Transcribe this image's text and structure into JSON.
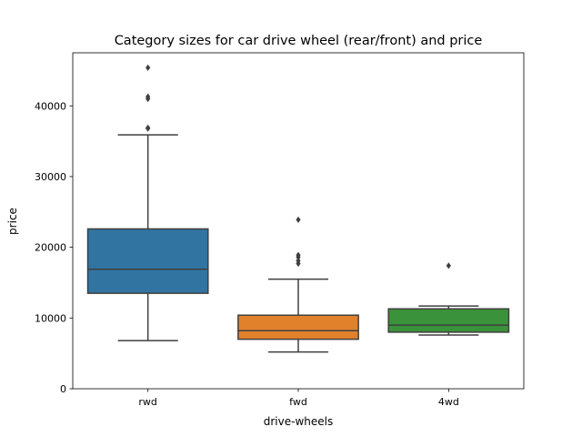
{
  "chart_data": {
    "type": "box",
    "title": "Category sizes for car drive wheel (rear/front) and price",
    "xlabel": "drive-wheels",
    "ylabel": "price",
    "ylim": [
      0,
      47500
    ],
    "yticks": [
      0,
      10000,
      20000,
      30000,
      40000
    ],
    "grid": false,
    "categories": [
      "rwd",
      "fwd",
      "4wd"
    ],
    "boxes": [
      {
        "category": "rwd",
        "color": "#3274a1",
        "whisker_low": 6800,
        "q1": 13500,
        "median": 16900,
        "q3": 22600,
        "whisker_high": 35900,
        "outliers": [
          36900,
          36800,
          41000,
          41300,
          45400
        ]
      },
      {
        "category": "fwd",
        "color": "#e1812c",
        "whisker_low": 5200,
        "q1": 7000,
        "median": 8200,
        "q3": 10400,
        "whisker_high": 15500,
        "outliers": [
          17700,
          18100,
          18600,
          18900,
          23900
        ]
      },
      {
        "category": "4wd",
        "color": "#3a923a",
        "whisker_low": 7600,
        "q1": 8000,
        "median": 9000,
        "q3": 11300,
        "whisker_high": 11700,
        "outliers": [
          17400
        ]
      }
    ]
  }
}
